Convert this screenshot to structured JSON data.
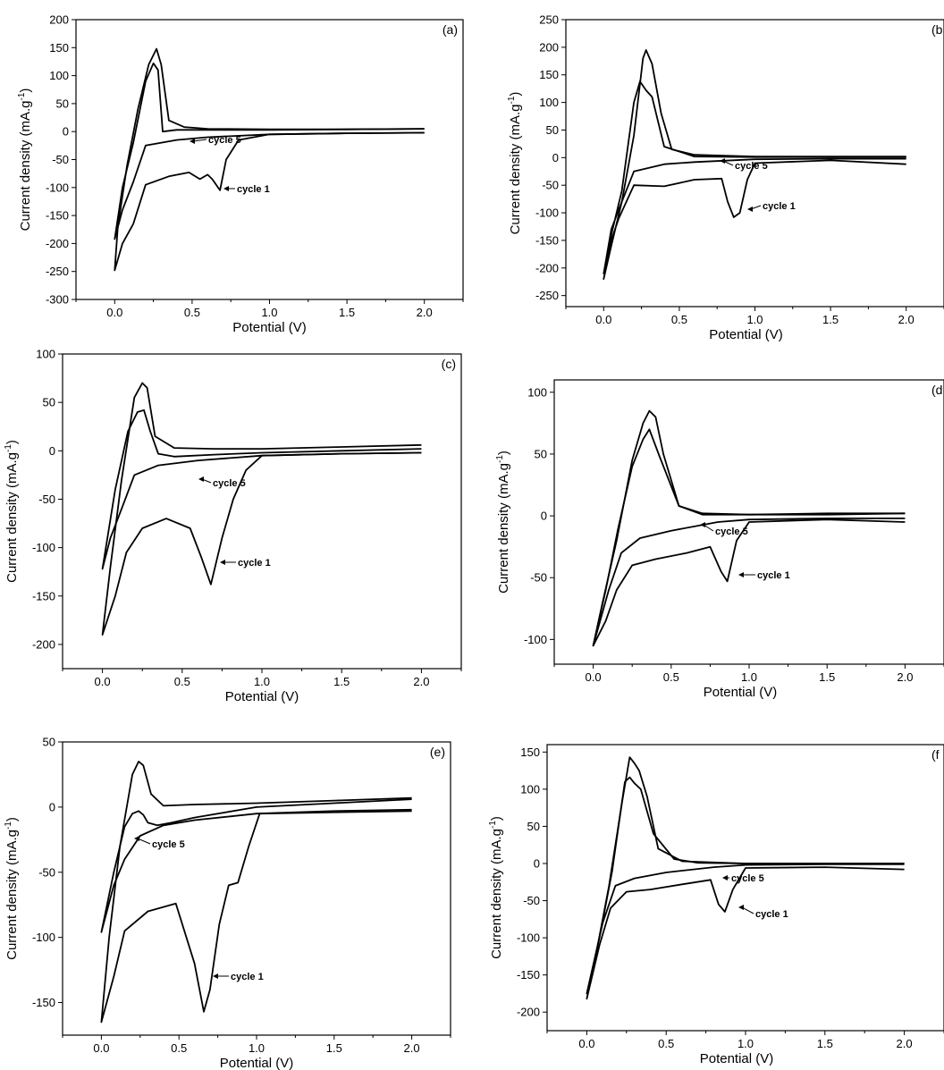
{
  "figure": {
    "panels": [
      {
        "id": "a",
        "panel_label": "(a)",
        "xlabel": "Potential (V)",
        "ylabel_main": "Current density (mA.g",
        "ylabel_sup": "-1",
        "ylabel_close": ")",
        "cycle5_label": "cycle 5",
        "cycle1_label": "cycle 1"
      },
      {
        "id": "b",
        "panel_label": "(b",
        "xlabel": "Potential (V)",
        "ylabel_main": "Current density (mA.g",
        "ylabel_sup": "-1",
        "ylabel_close": ")",
        "cycle5_label": "cycle 5",
        "cycle1_label": "cycle 1"
      },
      {
        "id": "c",
        "panel_label": "(c)",
        "xlabel": "Potential (V)",
        "ylabel_main": "Current density (mA.g",
        "ylabel_sup": "-1",
        "ylabel_close": ")",
        "cycle5_label": "cycle 5",
        "cycle1_label": "cycle 1"
      },
      {
        "id": "d",
        "panel_label": "(d",
        "xlabel": "Potential (V)",
        "ylabel_main": "Current density (mA.g",
        "ylabel_sup": "-1",
        "ylabel_close": ")",
        "cycle5_label": "cycle 5",
        "cycle1_label": "cycle 1"
      },
      {
        "id": "e",
        "panel_label": "(e)",
        "xlabel": "Potential (V)",
        "ylabel_main": "Current density (mA.g",
        "ylabel_sup": "-1",
        "ylabel_close": ")",
        "cycle5_label": "cycle 5",
        "cycle1_label": "cycle 1"
      },
      {
        "id": "f",
        "panel_label": "(f",
        "xlabel": "Potential (V)",
        "ylabel_main": "Current density (mA.g",
        "ylabel_sup": "-1",
        "ylabel_close": ")",
        "cycle5_label": "cycle 5",
        "cycle1_label": "cycle 1"
      }
    ]
  },
  "chart_data": [
    {
      "panel": "(a)",
      "type": "line",
      "xlabel": "Potential (V)",
      "ylabel": "Current density (mA.g-1)",
      "xlim": [
        -0.25,
        2.25
      ],
      "ylim": [
        -300,
        200
      ],
      "xticks": [
        0.0,
        0.5,
        1.0,
        1.5,
        2.0
      ],
      "yticks": [
        -300,
        -250,
        -200,
        -150,
        -100,
        -50,
        0,
        50,
        100,
        150,
        200
      ],
      "series": [
        {
          "name": "cycle 1",
          "x": [
            2.0,
            1.5,
            1.0,
            0.8,
            0.72,
            0.68,
            0.63,
            0.6,
            0.55,
            0.48,
            0.35,
            0.2,
            0.12,
            0.05,
            0.0,
            0.02,
            0.08,
            0.15,
            0.22,
            0.27,
            0.3,
            0.35,
            0.45,
            0.6,
            1.0,
            1.5,
            2.0
          ],
          "y": [
            -2,
            -3,
            -5,
            -15,
            -50,
            -105,
            -85,
            -77,
            -85,
            -73,
            -80,
            -95,
            -165,
            -200,
            -248,
            -170,
            -60,
            40,
            120,
            148,
            120,
            20,
            8,
            5,
            4,
            4,
            5
          ]
        },
        {
          "name": "cycle 5",
          "x": [
            2.0,
            1.5,
            1.0,
            0.6,
            0.4,
            0.2,
            0.12,
            0.05,
            0.0,
            0.05,
            0.12,
            0.2,
            0.25,
            0.28,
            0.31,
            0.4,
            0.6,
            1.0,
            1.5,
            2.0
          ],
          "y": [
            -2,
            -3,
            -5,
            -10,
            -15,
            -25,
            -90,
            -140,
            -192,
            -100,
            -20,
            90,
            122,
            110,
            0,
            3,
            3,
            3,
            4,
            5
          ]
        }
      ]
    },
    {
      "panel": "(b",
      "type": "line",
      "xlabel": "Potential (V)",
      "ylabel": "Current density (mA.g-1)",
      "xlim": [
        -0.25,
        2.25
      ],
      "ylim": [
        -270,
        250
      ],
      "xticks": [
        0.0,
        0.5,
        1.0,
        1.5,
        2.0
      ],
      "yticks": [
        -250,
        -200,
        -150,
        -100,
        -50,
        0,
        50,
        100,
        150,
        200,
        250
      ],
      "series": [
        {
          "name": "cycle 1",
          "x": [
            2.0,
            1.5,
            1.0,
            0.95,
            0.9,
            0.86,
            0.82,
            0.78,
            0.6,
            0.4,
            0.2,
            0.1,
            0.05,
            0.0,
            0.05,
            0.12,
            0.2,
            0.26,
            0.28,
            0.32,
            0.38,
            0.45,
            0.6,
            1.0,
            1.5,
            2.0
          ],
          "y": [
            -12,
            -5,
            -10,
            -40,
            -100,
            -108,
            -80,
            -38,
            -40,
            -52,
            -50,
            -110,
            -150,
            -220,
            -160,
            -80,
            40,
            180,
            195,
            170,
            80,
            15,
            5,
            2,
            2,
            2
          ]
        },
        {
          "name": "cycle 5",
          "x": [
            2.0,
            1.5,
            1.0,
            0.6,
            0.4,
            0.2,
            0.12,
            0.05,
            0.0,
            0.05,
            0.12,
            0.2,
            0.24,
            0.28,
            0.32,
            0.4,
            0.6,
            1.0,
            1.5,
            2.0
          ],
          "y": [
            -2,
            -2,
            -3,
            -8,
            -12,
            -25,
            -80,
            -130,
            -210,
            -140,
            -60,
            100,
            138,
            122,
            110,
            20,
            2,
            1,
            1,
            1
          ]
        }
      ]
    },
    {
      "panel": "(c)",
      "type": "line",
      "xlabel": "Potential (V)",
      "ylabel": "Current density (mA.g-1)",
      "xlim": [
        -0.25,
        2.25
      ],
      "ylim": [
        -225,
        100
      ],
      "xticks": [
        0.0,
        0.5,
        1.0,
        1.5,
        2.0
      ],
      "yticks": [
        -200,
        -150,
        -100,
        -50,
        0,
        50,
        100
      ],
      "series": [
        {
          "name": "cycle 1",
          "x": [
            2.0,
            1.5,
            1.0,
            0.9,
            0.82,
            0.75,
            0.68,
            0.62,
            0.55,
            0.4,
            0.25,
            0.15,
            0.08,
            0.0,
            0.05,
            0.12,
            0.2,
            0.25,
            0.28,
            0.33,
            0.45,
            0.7,
            1.0,
            1.5,
            2.0
          ],
          "y": [
            -2,
            -3,
            -5,
            -20,
            -50,
            -90,
            -138,
            -110,
            -80,
            -70,
            -80,
            -105,
            -150,
            -190,
            -120,
            -30,
            55,
            70,
            65,
            15,
            3,
            2,
            2,
            4,
            6
          ]
        },
        {
          "name": "cycle 5",
          "x": [
            2.0,
            1.5,
            1.0,
            0.6,
            0.35,
            0.2,
            0.12,
            0.05,
            0.0,
            0.08,
            0.16,
            0.22,
            0.26,
            0.3,
            0.35,
            0.45,
            0.7,
            1.0,
            1.5,
            2.0
          ],
          "y": [
            -2,
            -3,
            -5,
            -10,
            -15,
            -25,
            -60,
            -90,
            -122,
            -40,
            20,
            40,
            42,
            20,
            -3,
            -6,
            -4,
            -2,
            0,
            2
          ]
        }
      ]
    },
    {
      "panel": "(d",
      "type": "line",
      "xlabel": "Potential (V)",
      "ylabel": "Current density (mA.g-1)",
      "xlim": [
        -0.25,
        2.25
      ],
      "ylim": [
        -120,
        110
      ],
      "xticks": [
        0.0,
        0.5,
        1.0,
        1.5,
        2.0
      ],
      "yticks": [
        -100,
        -50,
        0,
        50,
        100
      ],
      "series": [
        {
          "name": "cycle 1",
          "x": [
            2.0,
            1.5,
            1.0,
            0.92,
            0.86,
            0.82,
            0.75,
            0.6,
            0.4,
            0.25,
            0.15,
            0.08,
            0.0,
            0.06,
            0.15,
            0.25,
            0.32,
            0.36,
            0.4,
            0.45,
            0.55,
            0.7,
            1.0,
            1.5,
            2.0
          ],
          "y": [
            -5,
            -3,
            -5,
            -20,
            -53,
            -45,
            -25,
            -30,
            -35,
            -40,
            -60,
            -85,
            -105,
            -70,
            -20,
            45,
            75,
            85,
            80,
            50,
            8,
            2,
            1,
            2,
            2
          ]
        },
        {
          "name": "cycle 5",
          "x": [
            2.0,
            1.5,
            1.0,
            0.8,
            0.5,
            0.3,
            0.18,
            0.1,
            0.0,
            0.08,
            0.16,
            0.25,
            0.32,
            0.36,
            0.42,
            0.55,
            0.7,
            1.0,
            1.5,
            2.0
          ],
          "y": [
            -2,
            -2,
            -3,
            -5,
            -12,
            -18,
            -30,
            -60,
            -105,
            -60,
            -10,
            40,
            62,
            70,
            50,
            8,
            1,
            1,
            1,
            2
          ]
        }
      ]
    },
    {
      "panel": "(e)",
      "type": "line",
      "xlabel": "Potential (V)",
      "ylabel": "Current density (mA.g-1)",
      "xlim": [
        -0.25,
        2.25
      ],
      "ylim": [
        -175,
        50
      ],
      "xticks": [
        0.0,
        0.5,
        1.0,
        1.5,
        2.0
      ],
      "yticks": [
        -150,
        -100,
        -50,
        0,
        50
      ],
      "series": [
        {
          "name": "cycle 1",
          "x": [
            2.0,
            1.5,
            1.02,
            0.95,
            0.88,
            0.82,
            0.76,
            0.7,
            0.66,
            0.6,
            0.48,
            0.3,
            0.15,
            0.08,
            0.0,
            0.05,
            0.12,
            0.2,
            0.24,
            0.27,
            0.32,
            0.4,
            0.6,
            1.0,
            1.5,
            2.0
          ],
          "y": [
            -3,
            -4,
            -5,
            -30,
            -58,
            -60,
            -90,
            -140,
            -157,
            -120,
            -74,
            -80,
            -95,
            -130,
            -165,
            -100,
            -30,
            25,
            35,
            32,
            10,
            1,
            2,
            3,
            5,
            7
          ]
        },
        {
          "name": "cycle 5",
          "x": [
            2.0,
            1.5,
            1.0,
            0.6,
            0.4,
            0.25,
            0.15,
            0.08,
            0.0,
            0.08,
            0.15,
            0.2,
            0.24,
            0.27,
            0.3,
            0.36,
            0.45,
            0.6,
            1.0,
            1.5,
            2.0
          ],
          "y": [
            -2,
            -3,
            -5,
            -10,
            -14,
            -22,
            -40,
            -60,
            -96,
            -50,
            -15,
            -5,
            -3,
            -6,
            -12,
            -14,
            -12,
            -8,
            0,
            3,
            6
          ]
        }
      ]
    },
    {
      "panel": "(f",
      "type": "line",
      "xlabel": "Potential (V)",
      "ylabel": "Current density (mA.g-1)",
      "xlim": [
        -0.25,
        2.25
      ],
      "ylim": [
        -225,
        160
      ],
      "xticks": [
        0.0,
        0.5,
        1.0,
        1.5,
        2.0
      ],
      "yticks": [
        -200,
        -150,
        -100,
        -50,
        0,
        50,
        100,
        150
      ],
      "series": [
        {
          "name": "cycle 1",
          "x": [
            2.0,
            1.5,
            1.0,
            0.92,
            0.87,
            0.83,
            0.78,
            0.6,
            0.4,
            0.25,
            0.15,
            0.08,
            0.0,
            0.06,
            0.14,
            0.22,
            0.27,
            0.3,
            0.33,
            0.38,
            0.45,
            0.6,
            1.0,
            1.5,
            2.0
          ],
          "y": [
            -8,
            -5,
            -6,
            -35,
            -65,
            -55,
            -22,
            -28,
            -35,
            -38,
            -60,
            -110,
            -182,
            -120,
            -30,
            80,
            143,
            135,
            125,
            90,
            20,
            3,
            0,
            0,
            0
          ]
        },
        {
          "name": "cycle 5",
          "x": [
            2.0,
            1.5,
            1.0,
            0.8,
            0.5,
            0.3,
            0.18,
            0.1,
            0.0,
            0.08,
            0.16,
            0.24,
            0.27,
            0.3,
            0.34,
            0.42,
            0.55,
            0.7,
            1.0,
            1.5,
            2.0
          ],
          "y": [
            -1,
            -1,
            -2,
            -5,
            -12,
            -20,
            -30,
            -80,
            -175,
            -100,
            -10,
            110,
            116,
            108,
            100,
            40,
            6,
            1,
            0,
            0,
            0
          ]
        }
      ]
    }
  ]
}
